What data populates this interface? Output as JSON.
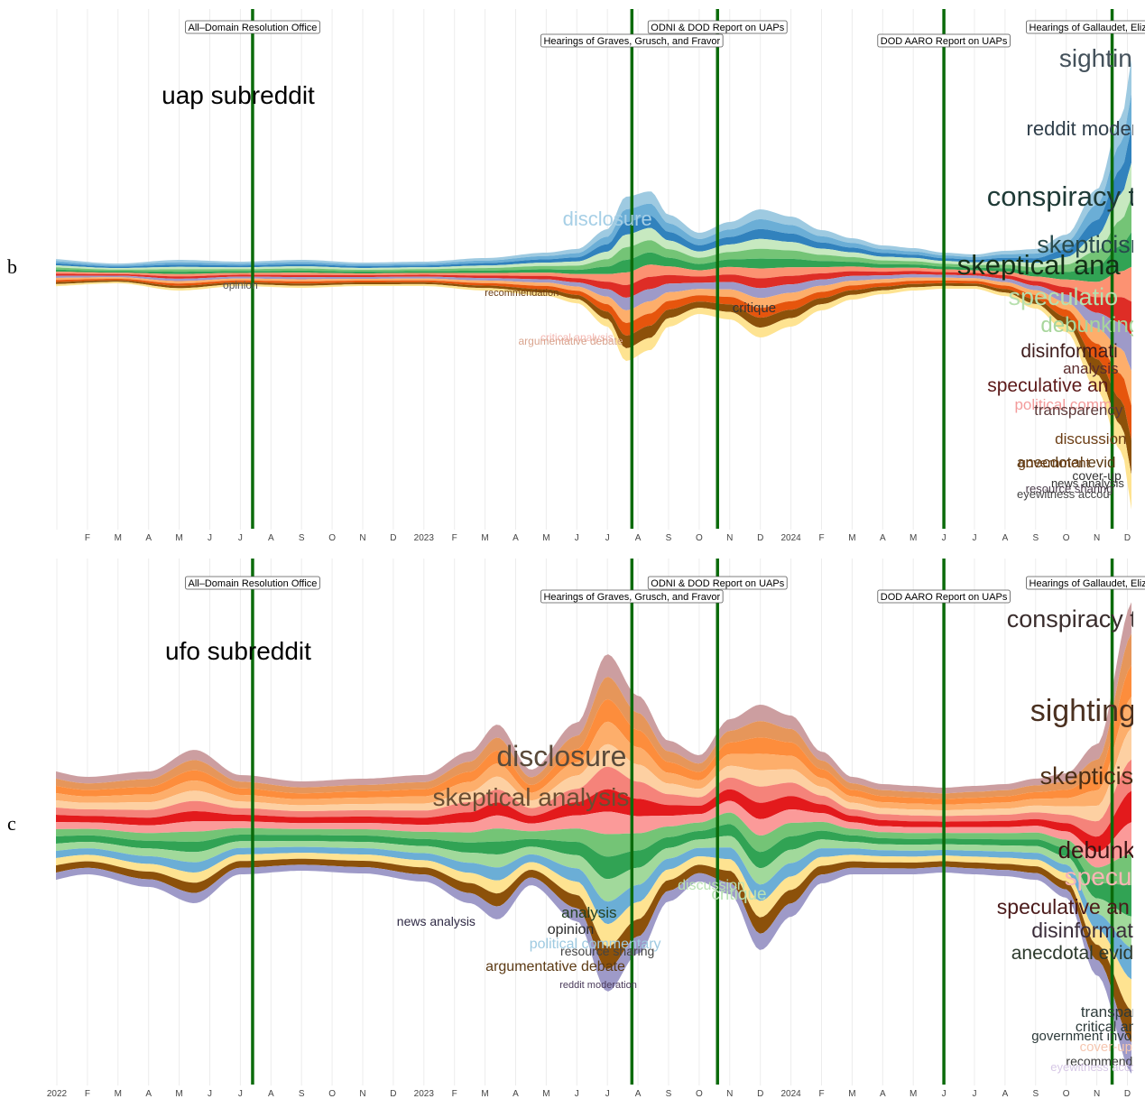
{
  "panels": [
    {
      "letter": "b",
      "title": "uap subreddit",
      "ticks": [
        "",
        "F",
        "M",
        "A",
        "M",
        "J",
        "J",
        "A",
        "S",
        "O",
        "N",
        "D",
        "2023",
        "F",
        "M",
        "A",
        "M",
        "J",
        "J",
        "A",
        "S",
        "O",
        "N",
        "D",
        "2024",
        "F",
        "M",
        "A",
        "M",
        "J",
        "J",
        "A",
        "S",
        "O",
        "N",
        "D"
      ],
      "events": [
        {
          "label": "All–Domain Resolution Office",
          "month": 6.4,
          "row": 0
        },
        {
          "label": "Hearings of Graves, Grusch, and Fravor",
          "month": 18.8,
          "row": 1
        },
        {
          "label": "ODNI & DOD Report on UAPs",
          "month": 21.6,
          "row": 0
        },
        {
          "label": "DOD AARO Report on UAPs",
          "month": 29.0,
          "row": 1
        },
        {
          "label": "Hearings of Gallaudet, Elizondo, Gold",
          "month": 34.5,
          "row": 0
        }
      ],
      "colors": [
        "#9ecae1",
        "#6baed6",
        "#3182bd",
        "#c7e9c0",
        "#74c476",
        "#31a354",
        "#fc9272",
        "#de2d26",
        "#9e9ac8",
        "#fdae6b",
        "#e6550d",
        "#8c510a",
        "#fee391"
      ],
      "envelope": {
        "months": [
          -0.8,
          2,
          4,
          6,
          8,
          10,
          12,
          14,
          16,
          17,
          18,
          18.6,
          19.4,
          20,
          21,
          22,
          23,
          24,
          25,
          26,
          27,
          28,
          29,
          30,
          31,
          32,
          33,
          34,
          34.8,
          35.2
        ],
        "top": [
          -14,
          -8,
          -12,
          -10,
          -12,
          -9,
          -10,
          -14,
          -20,
          -24,
          -46,
          -82,
          -88,
          -62,
          -42,
          -54,
          -68,
          -60,
          -45,
          -36,
          -28,
          -25,
          -20,
          -18,
          -22,
          -24,
          -40,
          -90,
          -170,
          -240
        ],
        "bottom": [
          18,
          14,
          22,
          17,
          19,
          17,
          17,
          22,
          28,
          36,
          62,
          100,
          88,
          62,
          48,
          54,
          74,
          62,
          44,
          32,
          26,
          22,
          20,
          20,
          28,
          42,
          68,
          132,
          200,
          270
        ]
      },
      "topic_labels": [
        {
          "text": "disclosure",
          "month": 18.0,
          "dy": -50,
          "size": 22,
          "color": "#a6cfe6"
        },
        {
          "text": "opinion",
          "month": 6.0,
          "dy": 20,
          "size": 12,
          "color": "#555555"
        },
        {
          "text": "recommendation",
          "month": 15.2,
          "dy": 28,
          "size": 11,
          "color": "#6b3d14"
        },
        {
          "text": "critique",
          "month": 22.8,
          "dy": 46,
          "size": 15,
          "color": "#333333"
        },
        {
          "text": "critical analysis",
          "month": 17.0,
          "dy": 78,
          "size": 12,
          "color": "#f4b6b0"
        },
        {
          "text": "argumentative debate",
          "month": 16.8,
          "dy": 82,
          "size": 12,
          "color": "#d9a48e"
        },
        {
          "text": "sightings",
          "month": 34.4,
          "dy": -226,
          "size": 28,
          "color": "#44515b"
        },
        {
          "text": "reddit modera",
          "month": 33.7,
          "dy": -150,
          "size": 22,
          "color": "#2f3e4a"
        },
        {
          "text": "conspiracy th",
          "month": 33.1,
          "dy": -72,
          "size": 31,
          "color": "#1e3a36"
        },
        {
          "text": "skepticism",
          "month": 33.9,
          "dy": -20,
          "size": 27,
          "color": "#284a4c"
        },
        {
          "text": "skeptical ana",
          "month": 32.1,
          "dy": 4,
          "size": 31,
          "color": "#143018"
        },
        {
          "text": "speculatio",
          "month": 32.9,
          "dy": 38,
          "size": 27,
          "color": "#b7dfae"
        },
        {
          "text": "debunking",
          "month": 33.8,
          "dy": 68,
          "size": 24,
          "color": "#a8d69c"
        },
        {
          "text": "disinformati",
          "month": 33.1,
          "dy": 96,
          "size": 21,
          "color": "#3e1c1c"
        },
        {
          "text": "analysis",
          "month": 33.8,
          "dy": 114,
          "size": 17,
          "color": "#5c2c2c"
        },
        {
          "text": "speculative an",
          "month": 32.4,
          "dy": 134,
          "size": 21,
          "color": "#5c1a1a"
        },
        {
          "text": "political comm",
          "month": 32.9,
          "dy": 154,
          "size": 17,
          "color": "#f39b9b"
        },
        {
          "text": "transparency",
          "month": 33.4,
          "dy": 160,
          "size": 17,
          "color": "#5c3a3a"
        },
        {
          "text": "discussion",
          "month": 33.8,
          "dy": 192,
          "size": 17,
          "color": "#6b3d14"
        },
        {
          "text": "anecdotal evid",
          "month": 33.0,
          "dy": 218,
          "size": 17,
          "color": "#5a3a14"
        },
        {
          "text": "government",
          "month": 32.6,
          "dy": 218,
          "size": 15,
          "color": "#6b3d14"
        },
        {
          "text": "cover-up",
          "month": 34.0,
          "dy": 232,
          "size": 14,
          "color": "#333333"
        },
        {
          "text": "news analysis",
          "month": 33.7,
          "dy": 240,
          "size": 13,
          "color": "#333333"
        },
        {
          "text": "resource sharing",
          "month": 33.1,
          "dy": 246,
          "size": 13,
          "color": "#4a3a4a"
        },
        {
          "text": "eyewitness accou",
          "month": 32.9,
          "dy": 252,
          "size": 13,
          "color": "#444444"
        }
      ]
    },
    {
      "letter": "c",
      "title": "ufo subreddit",
      "ticks": [
        "2022",
        "F",
        "M",
        "A",
        "M",
        "J",
        "J",
        "A",
        "S",
        "O",
        "N",
        "D",
        "2023",
        "F",
        "M",
        "A",
        "M",
        "J",
        "J",
        "A",
        "S",
        "O",
        "N",
        "D",
        "2024",
        "F",
        "M",
        "A",
        "M",
        "J",
        "J",
        "A",
        "S",
        "O",
        "N",
        "D"
      ],
      "events": [
        {
          "label": "All–Domain Resolution Office",
          "month": 6.4,
          "row": 0
        },
        {
          "label": "Hearings of Graves, Grusch, and Fravor",
          "month": 18.8,
          "row": 1
        },
        {
          "label": "ODNI & DOD Report on UAPs",
          "month": 21.6,
          "row": 0
        },
        {
          "label": "DOD AARO Report on UAPs",
          "month": 29.0,
          "row": 1
        },
        {
          "label": "Hearings of Gallaudet, Elizondo, Gold",
          "month": 34.5,
          "row": 0
        }
      ],
      "colors": [
        "#cc9ea0",
        "#e6965a",
        "#fd8d3c",
        "#fdae6b",
        "#fdd0a2",
        "#f5837a",
        "#e31a1c",
        "#fb9a99",
        "#74c476",
        "#31a354",
        "#a1d99b",
        "#6baed6",
        "#fee391",
        "#8c510a",
        "#9e9ac8"
      ],
      "envelope": {
        "months": [
          -0.8,
          1,
          3,
          4.5,
          6,
          8,
          10,
          12,
          13.5,
          14.4,
          15.5,
          17,
          18,
          19,
          20,
          21,
          22,
          23,
          24,
          25,
          26,
          27,
          28,
          29,
          30,
          31,
          32,
          33,
          34,
          35.2
        ],
        "top": [
          -70,
          -60,
          -66,
          -90,
          -62,
          -55,
          -58,
          -62,
          -88,
          -118,
          -68,
          -120,
          -196,
          -150,
          -100,
          -84,
          -124,
          -140,
          -128,
          -88,
          -60,
          -52,
          -50,
          -48,
          -50,
          -52,
          -58,
          -64,
          -96,
          -255
        ],
        "bottom": [
          58,
          48,
          62,
          80,
          48,
          44,
          47,
          56,
          80,
          98,
          60,
          100,
          178,
          136,
          78,
          56,
          70,
          132,
          95,
          58,
          48,
          48,
          48,
          46,
          48,
          50,
          54,
          74,
          160,
          270
        ]
      },
      "topic_labels": [
        {
          "text": "disclosure",
          "month": 16.5,
          "dy": -72,
          "size": 32,
          "color": "#5a4a3a"
        },
        {
          "text": "skeptical analysis",
          "month": 15.5,
          "dy": -28,
          "size": 28,
          "color": "#6b4e33"
        },
        {
          "text": "news analysis",
          "month": 12.4,
          "dy": 105,
          "size": 14,
          "color": "#2f2a45"
        },
        {
          "text": "discussion",
          "month": 21.4,
          "dy": 65,
          "size": 16,
          "color": "#b9e2b4"
        },
        {
          "text": "critique",
          "month": 22.3,
          "dy": 76,
          "size": 19,
          "color": "#b9e2b4"
        },
        {
          "text": "analysis",
          "month": 17.4,
          "dy": 96,
          "size": 17,
          "color": "#244224"
        },
        {
          "text": "opinion",
          "month": 16.8,
          "dy": 114,
          "size": 16,
          "color": "#2d2d2d"
        },
        {
          "text": "political commentary",
          "month": 17.6,
          "dy": 130,
          "size": 16,
          "color": "#9ecae1"
        },
        {
          "text": "resource sharing",
          "month": 18.0,
          "dy": 138,
          "size": 14,
          "color": "#444444"
        },
        {
          "text": "argumentative debate",
          "month": 16.3,
          "dy": 155,
          "size": 16,
          "color": "#5c3a14"
        },
        {
          "text": "reddit moderation",
          "month": 17.7,
          "dy": 174,
          "size": 11,
          "color": "#4a3a5a"
        },
        {
          "text": "conspiracy th",
          "month": 33.4,
          "dy": -226,
          "size": 27,
          "color": "#3a2d2d"
        },
        {
          "text": "sightings",
          "month": 33.8,
          "dy": -122,
          "size": 34,
          "color": "#4a3020"
        },
        {
          "text": "skepticism",
          "month": 34.0,
          "dy": -52,
          "size": 27,
          "color": "#4a2d14"
        },
        {
          "text": "debunking",
          "month": 34.5,
          "dy": 30,
          "size": 26,
          "color": "#3a1414"
        },
        {
          "text": "speculatio",
          "month": 34.8,
          "dy": 60,
          "size": 28,
          "color": "#f8b5b5"
        },
        {
          "text": "speculative an",
          "month": 32.9,
          "dy": 92,
          "size": 23,
          "color": "#4a1a1a"
        },
        {
          "text": "disinformati",
          "month": 33.6,
          "dy": 118,
          "size": 23,
          "color": "#3a2d3a"
        },
        {
          "text": "anecdotal evid",
          "month": 33.2,
          "dy": 142,
          "size": 21,
          "color": "#2d3a2d"
        },
        {
          "text": "transparenc",
          "month": 34.8,
          "dy": 206,
          "size": 17,
          "color": "#2d3a3a"
        },
        {
          "text": "critical analy",
          "month": 34.6,
          "dy": 222,
          "size": 16,
          "color": "#2d3a3a"
        },
        {
          "text": "government invo",
          "month": 33.5,
          "dy": 232,
          "size": 15,
          "color": "#2d3a3a"
        },
        {
          "text": "cover-up",
          "month": 34.3,
          "dy": 244,
          "size": 15,
          "color": "#f5c6b0"
        },
        {
          "text": "recommendati",
          "month": 34.3,
          "dy": 260,
          "size": 14,
          "color": "#3a3a3a"
        },
        {
          "text": "eyewitness accou",
          "month": 34.0,
          "dy": 266,
          "size": 13,
          "color": "#d7c8e6"
        }
      ]
    }
  ]
}
